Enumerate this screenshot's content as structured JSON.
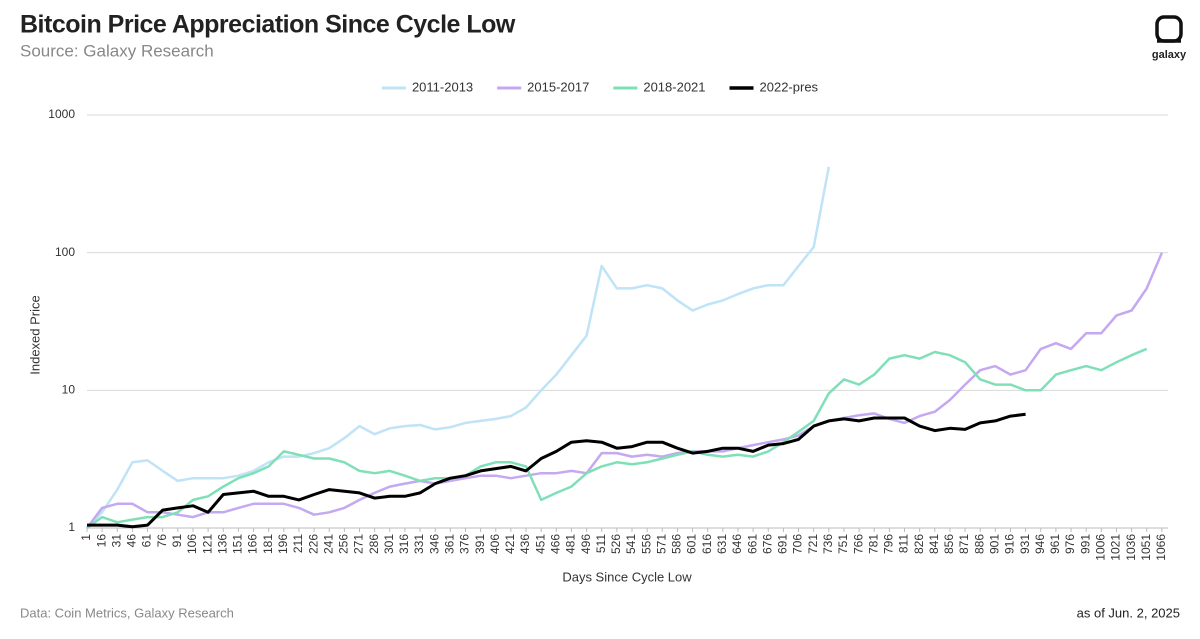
{
  "chart_data": {
    "type": "line",
    "title": "Bitcoin Price Appreciation Since Cycle Low",
    "subtitle": "Source: Galaxy Research",
    "logo_text": "galaxy",
    "x_label": "Days Since Cycle Low",
    "y_label": "Indexed Price",
    "footnote_left": "Data: Coin Metrics, Galaxy Research",
    "footnote_right": "as of Jun. 2, 2025",
    "yscale": "log",
    "grid": true,
    "legend": "top",
    "ylim": [
      1,
      1000
    ],
    "yticks": [
      1,
      10,
      100,
      1000
    ],
    "xlim": [
      1,
      1080
    ],
    "xticks": [
      1,
      16,
      31,
      46,
      61,
      76,
      91,
      106,
      121,
      136,
      151,
      166,
      181,
      196,
      211,
      226,
      241,
      256,
      271,
      286,
      301,
      316,
      331,
      346,
      361,
      376,
      391,
      406,
      421,
      436,
      451,
      466,
      481,
      496,
      511,
      526,
      541,
      556,
      571,
      586,
      601,
      616,
      631,
      646,
      661,
      676,
      691,
      706,
      721,
      736,
      751,
      766,
      781,
      796,
      811,
      826,
      841,
      856,
      871,
      886,
      901,
      916,
      931,
      946,
      961,
      976,
      991,
      1006,
      1021,
      1036,
      1051,
      1066
    ],
    "x": [
      1,
      16,
      31,
      46,
      61,
      76,
      91,
      106,
      121,
      136,
      151,
      166,
      181,
      196,
      211,
      226,
      241,
      256,
      271,
      286,
      301,
      316,
      331,
      346,
      361,
      376,
      391,
      406,
      421,
      436,
      451,
      466,
      481,
      496,
      511,
      526,
      541,
      556,
      571,
      586,
      601,
      616,
      631,
      646,
      661,
      676,
      691,
      706,
      721,
      736,
      751,
      766,
      781,
      796,
      811,
      826,
      841,
      856,
      871,
      886,
      901,
      916,
      931,
      946,
      961,
      976,
      991,
      1006,
      1021,
      1036,
      1051,
      1066
    ],
    "series": [
      {
        "name": "2011-2013",
        "color": "#bfe3f7",
        "values": [
          1.0,
          1.3,
          1.9,
          3.0,
          3.1,
          2.6,
          2.2,
          2.3,
          2.3,
          2.3,
          2.4,
          2.6,
          3.0,
          3.3,
          3.3,
          3.5,
          3.8,
          4.5,
          5.5,
          4.8,
          5.3,
          5.5,
          5.6,
          5.2,
          5.4,
          5.8,
          6.0,
          6.2,
          6.5,
          7.5,
          10,
          13,
          18,
          25,
          80,
          55,
          55,
          58,
          55,
          45,
          38,
          42,
          45,
          50,
          55,
          58,
          58,
          80,
          110,
          420,
          null,
          null,
          null,
          null,
          null,
          null,
          null,
          null,
          null,
          null,
          null,
          null,
          null,
          null,
          null,
          null,
          null,
          null,
          null,
          null,
          null,
          null
        ]
      },
      {
        "name": "2015-2017",
        "color": "#c4a8f0",
        "values": [
          1.0,
          1.4,
          1.5,
          1.5,
          1.3,
          1.3,
          1.25,
          1.2,
          1.3,
          1.3,
          1.4,
          1.5,
          1.5,
          1.5,
          1.4,
          1.25,
          1.3,
          1.4,
          1.6,
          1.8,
          2.0,
          2.1,
          2.2,
          2.1,
          2.2,
          2.3,
          2.4,
          2.4,
          2.3,
          2.4,
          2.5,
          2.5,
          2.6,
          2.5,
          3.5,
          3.5,
          3.3,
          3.4,
          3.3,
          3.5,
          3.6,
          3.6,
          3.6,
          3.8,
          4.0,
          4.2,
          4.4,
          4.7,
          5.5,
          6.0,
          6.3,
          6.6,
          6.8,
          6.2,
          5.8,
          6.5,
          7.0,
          8.5,
          11,
          14,
          15,
          13,
          14,
          20,
          22,
          20,
          26,
          26,
          35,
          38,
          55,
          100
        ]
      },
      {
        "name": "2018-2021",
        "color": "#7fe0b8",
        "values": [
          1.0,
          1.2,
          1.1,
          1.15,
          1.2,
          1.2,
          1.3,
          1.6,
          1.7,
          2.0,
          2.3,
          2.5,
          2.8,
          3.6,
          3.4,
          3.2,
          3.2,
          3.0,
          2.6,
          2.5,
          2.6,
          2.4,
          2.2,
          2.3,
          2.3,
          2.4,
          2.8,
          3.0,
          3.0,
          2.8,
          1.6,
          1.8,
          2.0,
          2.5,
          2.8,
          3.0,
          2.9,
          3.0,
          3.2,
          3.4,
          3.6,
          3.4,
          3.3,
          3.4,
          3.3,
          3.6,
          4.2,
          5.0,
          6.0,
          9.5,
          12,
          11,
          13,
          17,
          18,
          17,
          19,
          18,
          16,
          12,
          11,
          11,
          10,
          10,
          13,
          14,
          15,
          14,
          16,
          18,
          20,
          null
        ]
      },
      {
        "name": "2022-pres",
        "color": "#000000",
        "values": [
          1.05,
          1.05,
          1.05,
          1.02,
          1.05,
          1.35,
          1.4,
          1.45,
          1.3,
          1.75,
          1.8,
          1.85,
          1.7,
          1.7,
          1.6,
          1.75,
          1.9,
          1.85,
          1.8,
          1.65,
          1.7,
          1.7,
          1.8,
          2.1,
          2.3,
          2.4,
          2.6,
          2.7,
          2.8,
          2.6,
          3.2,
          3.6,
          4.2,
          4.3,
          4.2,
          3.8,
          3.9,
          4.2,
          4.2,
          3.8,
          3.5,
          3.6,
          3.8,
          3.8,
          3.6,
          4.0,
          4.1,
          4.4,
          5.5,
          6.0,
          6.2,
          6.0,
          6.3,
          6.3,
          6.3,
          5.5,
          5.1,
          5.3,
          5.2,
          5.8,
          6.0,
          6.5,
          6.7,
          null,
          null,
          null,
          null,
          null,
          null,
          null,
          null,
          null
        ]
      }
    ]
  }
}
